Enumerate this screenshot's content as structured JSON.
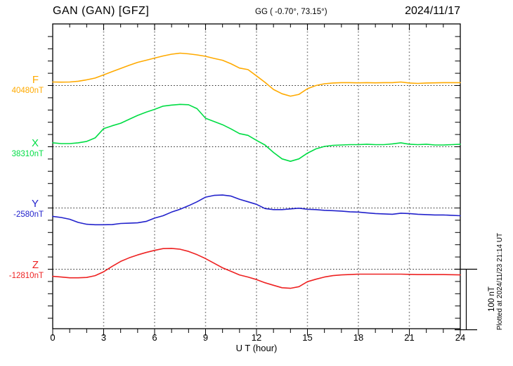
{
  "header": {
    "station_title": "GAN (GAN)  [GFZ]",
    "coordinates": "GG ( -0.70°,  73.15°)",
    "date": "2024/11/17"
  },
  "axis": {
    "x_title": "U T (hour)",
    "x_ticks": [
      0,
      3,
      6,
      9,
      12,
      15,
      18,
      21,
      24
    ],
    "x_minor_step_hours": 1
  },
  "scale_bar": {
    "label": "100 nT",
    "nT": 100
  },
  "footer": {
    "plotted_at": "Plotted at 2024/11/23 21:14 UT"
  },
  "chart_data": {
    "type": "line",
    "title": "GAN (GAN) [GFZ] 2024/11/17",
    "xlabel": "U T (hour)",
    "ylabel": "",
    "xlim": [
      0,
      24
    ],
    "grid": "dotted",
    "legend_position": "left",
    "scale_bar_nT": 100,
    "x_hours": [
      0,
      0.5,
      1,
      1.5,
      2,
      2.5,
      3,
      3.5,
      4,
      4.5,
      5,
      5.5,
      6,
      6.5,
      7,
      7.5,
      8,
      8.5,
      9,
      9.5,
      10,
      10.5,
      11,
      11.5,
      12,
      12.5,
      13,
      13.5,
      14,
      14.5,
      15,
      15.5,
      16,
      16.5,
      17,
      17.5,
      18,
      18.5,
      19,
      19.5,
      20,
      20.5,
      21,
      21.5,
      22,
      22.5,
      23,
      23.5,
      24
    ],
    "series": [
      {
        "name": "F",
        "baseline_label": "40480nT",
        "baseline_nT": 40480,
        "color": "#ffaa00",
        "offsets_nT": [
          5.8,
          5.5,
          5.8,
          7.0,
          9.3,
          12.2,
          17.4,
          22.7,
          27.9,
          33.1,
          37.8,
          41.3,
          44.8,
          48.3,
          51.2,
          52.9,
          51.7,
          50.0,
          47.7,
          44.2,
          41.3,
          35.5,
          28.5,
          26.0,
          15.7,
          5.2,
          -6.4,
          -13.4,
          -17.4,
          -14.5,
          -5.2,
          0.0,
          2.9,
          4.1,
          4.7,
          4.7,
          4.4,
          4.7,
          4.4,
          4.7,
          4.7,
          5.8,
          4.1,
          3.5,
          4.1,
          4.4,
          4.7,
          4.7,
          4.7
        ]
      },
      {
        "name": "X",
        "baseline_label": "38310nT",
        "baseline_nT": 38310,
        "color": "#00dd44",
        "offsets_nT": [
          6.4,
          5.2,
          5.2,
          6.4,
          8.7,
          14.5,
          29.7,
          34.3,
          38.4,
          44.8,
          51.2,
          56.4,
          61.0,
          66.3,
          68.0,
          69.2,
          68.6,
          62.2,
          46.5,
          41.3,
          36.0,
          29.1,
          21.5,
          18.6,
          10.5,
          2.9,
          -9.3,
          -19.8,
          -23.8,
          -19.8,
          -10.5,
          -3.5,
          0.6,
          2.3,
          2.9,
          3.5,
          3.5,
          4.1,
          3.5,
          3.5,
          4.7,
          6.4,
          4.1,
          3.5,
          4.1,
          2.9,
          2.9,
          3.5,
          4.1
        ]
      },
      {
        "name": "Y",
        "baseline_label": "-2580nT",
        "baseline_nT": -2580,
        "color": "#2222cc",
        "offsets_nT": [
          -13.7,
          -15.5,
          -18.4,
          -23.6,
          -26.5,
          -27.4,
          -27.4,
          -27.1,
          -25.3,
          -24.8,
          -24.2,
          -21.9,
          -16.6,
          -12.6,
          -6.7,
          -2.1,
          3.7,
          10.1,
          17.7,
          20.6,
          21.2,
          19.4,
          14.2,
          10.1,
          6.0,
          -0.9,
          -2.7,
          -2.7,
          -1.5,
          -0.3,
          -2.1,
          -2.7,
          -3.8,
          -4.4,
          -5.0,
          -6.2,
          -6.7,
          -7.9,
          -9.1,
          -9.7,
          -10.2,
          -8.5,
          -9.1,
          -10.2,
          -10.8,
          -11.4,
          -11.4,
          -12.0,
          -12.6
        ]
      },
      {
        "name": "Z",
        "baseline_label": "-12810nT",
        "baseline_nT": -12810,
        "color": "#ee2222",
        "offsets_nT": [
          -11.6,
          -12.8,
          -14.0,
          -14.0,
          -13.4,
          -10.5,
          -4.1,
          4.7,
          12.8,
          18.6,
          23.3,
          27.3,
          30.8,
          33.7,
          34.0,
          32.6,
          29.1,
          23.8,
          17.4,
          9.9,
          2.3,
          -3.5,
          -9.3,
          -12.8,
          -16.9,
          -22.1,
          -26.2,
          -30.2,
          -31.2,
          -28.5,
          -20.3,
          -16.3,
          -12.8,
          -10.5,
          -9.3,
          -8.7,
          -8.1,
          -8.1,
          -8.1,
          -8.1,
          -8.1,
          -8.1,
          -8.4,
          -8.7,
          -8.7,
          -8.7,
          -8.7,
          -9.0,
          -9.3
        ]
      }
    ]
  }
}
